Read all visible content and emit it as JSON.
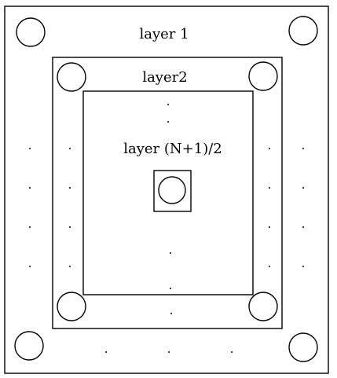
{
  "labels": {
    "layer1": "layer 1",
    "layer2": "layer2",
    "layer_mid": "layer (N+1)/2"
  },
  "colors": {
    "line": "#000000",
    "background": "#ffffff"
  }
}
